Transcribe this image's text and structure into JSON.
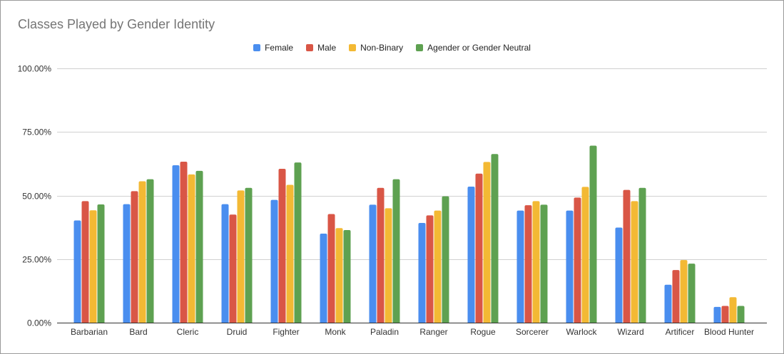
{
  "chart_data": {
    "type": "bar",
    "title": "Classes Played by Gender Identity",
    "categories": [
      "Barbarian",
      "Bard",
      "Cleric",
      "Druid",
      "Fighter",
      "Monk",
      "Paladin",
      "Ranger",
      "Rogue",
      "Sorcerer",
      "Warlock",
      "Wizard",
      "Artificer",
      "Blood Hunter"
    ],
    "series": [
      {
        "name": "Female",
        "color": "#4a8eef",
        "values": [
          40.2,
          46.6,
          61.9,
          46.6,
          48.3,
          35.0,
          46.4,
          39.2,
          53.5,
          44.1,
          44.1,
          37.4,
          14.9,
          6.2
        ]
      },
      {
        "name": "Male",
        "color": "#d95646",
        "values": [
          47.8,
          51.7,
          63.3,
          42.5,
          60.5,
          42.7,
          53.0,
          42.2,
          58.6,
          46.2,
          49.2,
          52.2,
          20.7,
          6.6
        ]
      },
      {
        "name": "Non-Binary",
        "color": "#f3b934",
        "values": [
          44.2,
          55.6,
          58.3,
          52.0,
          54.2,
          37.2,
          45.0,
          44.1,
          63.2,
          47.8,
          53.4,
          47.8,
          24.6,
          10.0
        ]
      },
      {
        "name": "Agender or Gender Neutral",
        "color": "#5ea151",
        "values": [
          46.5,
          56.4,
          59.7,
          53.0,
          63.0,
          36.4,
          56.4,
          49.7,
          66.3,
          46.4,
          69.6,
          53.0,
          23.2,
          6.6
        ]
      }
    ],
    "ylim": [
      0,
      100
    ],
    "yticks": [
      "0.00%",
      "25.00%",
      "50.00%",
      "75.00%",
      "100.00%"
    ],
    "grid": true,
    "legend_position": "top",
    "xlabel": "",
    "ylabel": ""
  }
}
